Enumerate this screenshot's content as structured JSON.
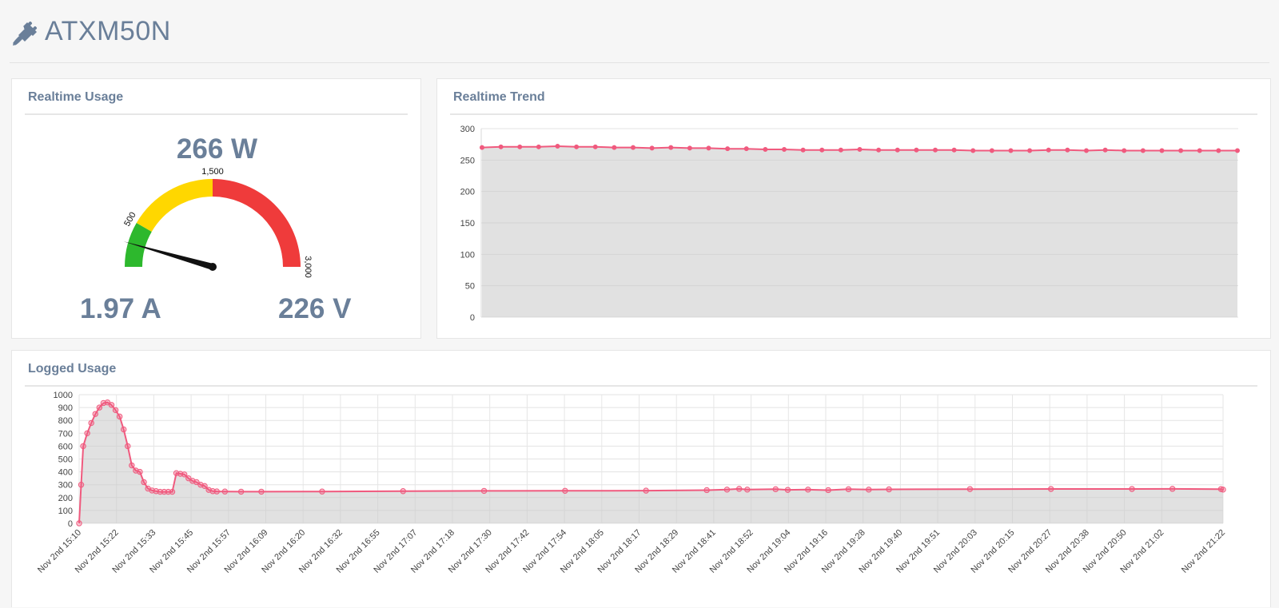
{
  "header": {
    "title": "ATXM50N",
    "icon": "plug-icon"
  },
  "usage": {
    "title": "Realtime Usage",
    "power": "266 W",
    "current": "1.97 A",
    "voltage": "226 V",
    "gauge": {
      "min": 0,
      "max": 3000,
      "value": 266,
      "bands": [
        {
          "from": 0,
          "to": 500,
          "color": "#2db82d"
        },
        {
          "from": 500,
          "to": 1500,
          "color": "#ffd700"
        },
        {
          "from": 1500,
          "to": 3000,
          "color": "#ef3b3b"
        }
      ],
      "labels": [
        {
          "value": 500,
          "text": "500"
        },
        {
          "value": 1500,
          "text": "1,500"
        },
        {
          "value": 3000,
          "text": "3,000"
        }
      ]
    }
  },
  "trend": {
    "title": "Realtime Trend"
  },
  "logged": {
    "title": "Logged Usage"
  },
  "chart_data": [
    {
      "id": "realtime-trend",
      "type": "area",
      "color": "#f05a7e",
      "ylim": [
        0,
        300
      ],
      "yticks": [
        0,
        50,
        100,
        150,
        200,
        250,
        300
      ],
      "grid": true,
      "series": [
        {
          "values": [
            270,
            271,
            271,
            271,
            272,
            271,
            271,
            270,
            270,
            269,
            270,
            269,
            269,
            268,
            268,
            267,
            267,
            266,
            266,
            266,
            267,
            266,
            266,
            266,
            266,
            266,
            265,
            265,
            265,
            265,
            266,
            266,
            265,
            266,
            265,
            265,
            265,
            265,
            265,
            265,
            265
          ]
        }
      ]
    },
    {
      "id": "logged-usage",
      "type": "area",
      "color": "#f05a7e",
      "ylim": [
        0,
        1000
      ],
      "yticks": [
        0,
        100,
        200,
        300,
        400,
        500,
        600,
        700,
        800,
        900,
        1000
      ],
      "grid": true,
      "xtick_labels": [
        "Nov 2nd 15:10",
        "Nov 2nd 15:22",
        "Nov 2nd 15:33",
        "Nov 2nd 15:45",
        "Nov 2nd 15:57",
        "Nov 2nd 16:09",
        "Nov 2nd 16:20",
        "Nov 2nd 16:32",
        "Nov 2nd 16:55",
        "Nov 2nd 17:07",
        "Nov 2nd 17:18",
        "Nov 2nd 17:30",
        "Nov 2nd 17:42",
        "Nov 2nd 17:54",
        "Nov 2nd 18:05",
        "Nov 2nd 18:17",
        "Nov 2nd 18:29",
        "Nov 2nd 18:41",
        "Nov 2nd 18:52",
        "Nov 2nd 19:04",
        "Nov 2nd 19:16",
        "Nov 2nd 19:28",
        "Nov 2nd 19:40",
        "Nov 2nd 19:51",
        "Nov 2nd 20:03",
        "Nov 2nd 20:15",
        "Nov 2nd 20:27",
        "Nov 2nd 20:38",
        "Nov 2nd 20:50",
        "Nov 2nd 21:02",
        "Nov 2nd 21:22"
      ],
      "series": [
        {
          "points": [
            [
              0,
              0
            ],
            [
              0.5,
              300
            ],
            [
              1,
              600
            ],
            [
              2,
              700
            ],
            [
              3,
              780
            ],
            [
              4,
              850
            ],
            [
              5,
              900
            ],
            [
              6,
              935
            ],
            [
              7,
              940
            ],
            [
              8,
              920
            ],
            [
              9,
              880
            ],
            [
              10,
              830
            ],
            [
              11,
              730
            ],
            [
              12,
              600
            ],
            [
              13,
              450
            ],
            [
              14,
              410
            ],
            [
              15,
              400
            ],
            [
              16,
              320
            ],
            [
              17,
              270
            ],
            [
              18,
              255
            ],
            [
              19,
              250
            ],
            [
              20,
              245
            ],
            [
              21,
              245
            ],
            [
              22,
              245
            ],
            [
              23,
              245
            ],
            [
              24,
              390
            ],
            [
              25,
              385
            ],
            [
              26,
              380
            ],
            [
              27,
              350
            ],
            [
              28,
              330
            ],
            [
              29,
              320
            ],
            [
              30,
              300
            ],
            [
              31,
              290
            ],
            [
              32,
              260
            ],
            [
              33,
              250
            ],
            [
              34,
              248
            ],
            [
              36,
              247
            ],
            [
              40,
              246
            ],
            [
              45,
              246
            ],
            [
              60,
              247
            ],
            [
              80,
              250
            ],
            [
              100,
              252
            ],
            [
              120,
              253
            ],
            [
              140,
              254
            ],
            [
              155,
              258
            ],
            [
              160,
              262
            ],
            [
              163,
              268
            ],
            [
              165,
              262
            ],
            [
              172,
              265
            ],
            [
              175,
              260
            ],
            [
              180,
              262
            ],
            [
              185,
              258
            ],
            [
              190,
              265
            ],
            [
              195,
              262
            ],
            [
              200,
              264
            ],
            [
              220,
              266
            ],
            [
              240,
              267
            ],
            [
              260,
              267
            ],
            [
              270,
              268
            ],
            [
              282,
              266
            ],
            [
              282.5,
              262
            ]
          ]
        }
      ]
    }
  ]
}
